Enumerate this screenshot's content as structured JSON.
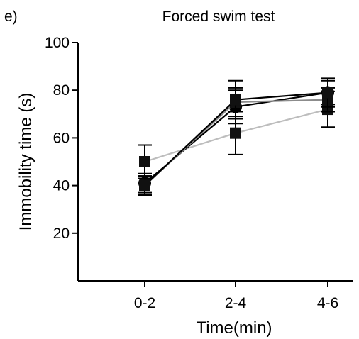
{
  "panel_label": "e)",
  "chart_data": {
    "type": "line",
    "title": "Forced swim test",
    "xlabel": "Time(min)",
    "ylabel": "Immobility time (s)",
    "categories": [
      "0-2",
      "2-4",
      "4-6"
    ],
    "ylim": [
      0,
      100
    ],
    "yticks": [
      20,
      40,
      60,
      80,
      100
    ],
    "grid": false,
    "series": [
      {
        "color": "#bdbdbd",
        "marker": "square",
        "values": [
          50,
          62,
          72
        ],
        "errors": [
          7,
          9,
          7.5
        ]
      },
      {
        "color": "#000000",
        "marker": "circle",
        "values": [
          41,
          73,
          79
        ],
        "errors": [
          4,
          7,
          5
        ]
      },
      {
        "color": "#8c8c8c",
        "marker": "square",
        "values": [
          40,
          75,
          76
        ],
        "errors": [
          4,
          6,
          5
        ]
      },
      {
        "color": "#000000",
        "marker": "square",
        "values": [
          40,
          76,
          79
        ],
        "errors": [
          4,
          8,
          6
        ]
      }
    ]
  }
}
